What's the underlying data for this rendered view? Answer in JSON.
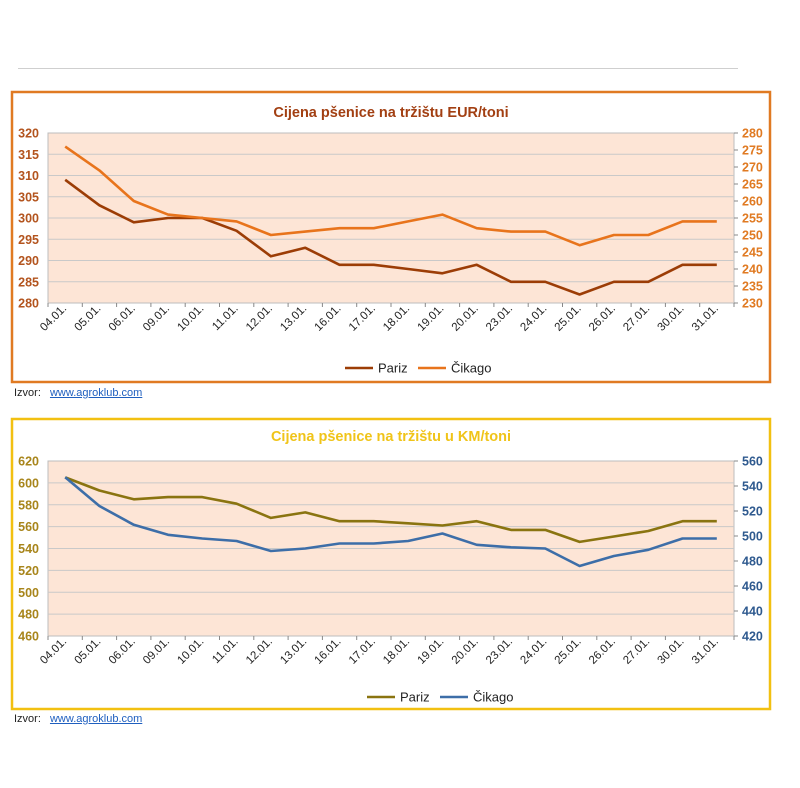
{
  "chart_data": [
    {
      "type": "line",
      "title": "Cijena pšenice na tržištu EUR/toni",
      "categories": [
        "04.01.",
        "05.01.",
        "06.01.",
        "09.01.",
        "10.01.",
        "11.01.",
        "12.01.",
        "13.01.",
        "16.01.",
        "17.01.",
        "18.01.",
        "19.01.",
        "20.01.",
        "23.01.",
        "24.01.",
        "25.01.",
        "26.01.",
        "27.01.",
        "30.01.",
        "31.01."
      ],
      "left_axis": {
        "ylim": [
          280,
          320
        ],
        "ticks": [
          "280",
          "285",
          "290",
          "295",
          "300",
          "305",
          "310",
          "315",
          "320"
        ]
      },
      "right_axis": {
        "ylim": [
          230,
          280
        ],
        "ticks": [
          "230",
          "235",
          "240",
          "245",
          "250",
          "255",
          "260",
          "265",
          "270",
          "275",
          "280"
        ]
      },
      "series": [
        {
          "name": "Pariz",
          "axis": "left",
          "color": "#9c3d06",
          "values": [
            309,
            303,
            299,
            300,
            300,
            297,
            291,
            293,
            289,
            289,
            288,
            287,
            289,
            285,
            285,
            282,
            285,
            285,
            289,
            289
          ]
        },
        {
          "name": "Čikago",
          "axis": "right",
          "color": "#e8741c",
          "values": [
            276,
            269,
            260,
            256,
            255,
            254,
            250,
            251,
            252,
            252,
            254,
            256,
            252,
            251,
            251,
            247,
            250,
            250,
            254,
            254
          ]
        }
      ],
      "colors": {
        "frame": "#e07a22",
        "plot_bg": "#fde5d6",
        "grid": "#c9c9c9",
        "title": "#a23f12",
        "axis_left": "#b3541e",
        "axis_right": "#e07a22"
      }
    },
    {
      "type": "line",
      "title": "Cijena pšenice na tržištu u KM/toni",
      "categories": [
        "04.01.",
        "05.01.",
        "06.01.",
        "09.01.",
        "10.01.",
        "11.01.",
        "12.01.",
        "13.01.",
        "16.01.",
        "17.01.",
        "18.01.",
        "19.01.",
        "20.01.",
        "23.01.",
        "24.01.",
        "25.01.",
        "26.01.",
        "27.01.",
        "30.01.",
        "31.01."
      ],
      "left_axis": {
        "ylim": [
          460,
          620
        ],
        "ticks": [
          "460",
          "480",
          "500",
          "520",
          "540",
          "560",
          "580",
          "600",
          "620"
        ]
      },
      "right_axis": {
        "ylim": [
          420,
          560
        ],
        "ticks": [
          "420",
          "440",
          "460",
          "480",
          "500",
          "520",
          "540",
          "560"
        ]
      },
      "series": [
        {
          "name": "Pariz",
          "axis": "left",
          "color": "#8a7410",
          "values": [
            605,
            593,
            585,
            587,
            587,
            581,
            568,
            573,
            565,
            565,
            563,
            561,
            565,
            557,
            557,
            546,
            551,
            556,
            565,
            565
          ]
        },
        {
          "name": "Čikago",
          "axis": "right",
          "color": "#3d6ea8",
          "values": [
            547,
            524,
            509,
            501,
            498,
            496,
            488,
            490,
            494,
            494,
            496,
            502,
            493,
            491,
            490,
            476,
            484,
            489,
            498,
            498
          ]
        }
      ],
      "colors": {
        "frame": "#f2c011",
        "plot_bg": "#fde5d6",
        "grid": "#c9c9c9",
        "title": "#f0c419",
        "axis_left": "#a8851b",
        "axis_right": "#2f5a8f"
      }
    }
  ],
  "sources": [
    {
      "label": "Izvor:",
      "link": "www.agroklub.com"
    },
    {
      "label": "Izvor:",
      "link": "www.agroklub.com"
    }
  ]
}
